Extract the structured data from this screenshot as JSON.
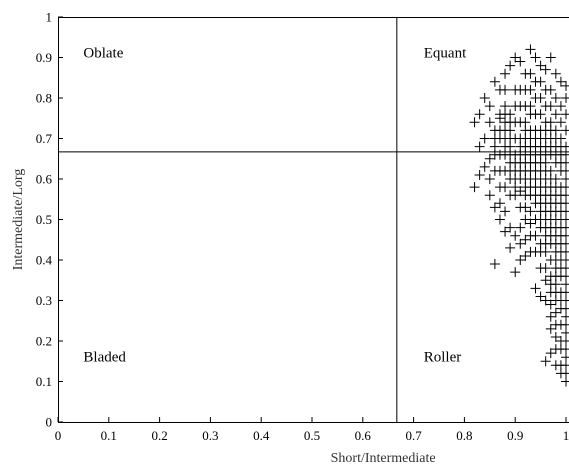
{
  "chart_data": {
    "type": "scatter",
    "xlabel": "Short/Intermediate",
    "ylabel": "Intermediate/Lorg",
    "xlim": [
      0,
      1
    ],
    "ylim": [
      0,
      1
    ],
    "xticks": [
      "0",
      "0.1",
      "0.2",
      "0.3",
      "0.4",
      "0.5",
      "0.6",
      "0.7",
      "0.8",
      "0.9",
      "1"
    ],
    "yticks": [
      "0",
      "0.1",
      "0.2",
      "0.3",
      "0.4",
      "0.5",
      "0.6",
      "0.7",
      "0.8",
      "0.9",
      "1"
    ],
    "divider_x": 0.667,
    "divider_y": 0.667,
    "regions": [
      {
        "label": "Oblate",
        "x": 0.05,
        "y": 0.9
      },
      {
        "label": "Equant",
        "x": 0.72,
        "y": 0.9
      },
      {
        "label": "Bladed",
        "x": 0.05,
        "y": 0.15
      },
      {
        "label": "Roller",
        "x": 0.72,
        "y": 0.15
      }
    ],
    "marker": "+",
    "color": "#000000",
    "points": [
      [
        0.82,
        0.58
      ],
      [
        0.83,
        0.61
      ],
      [
        0.84,
        0.63
      ],
      [
        0.85,
        0.65
      ],
      [
        0.86,
        0.68
      ],
      [
        0.86,
        0.72
      ],
      [
        0.87,
        0.75
      ],
      [
        0.88,
        0.78
      ],
      [
        0.87,
        0.82
      ],
      [
        0.86,
        0.84
      ],
      [
        0.88,
        0.86
      ],
      [
        0.89,
        0.88
      ],
      [
        0.9,
        0.9
      ],
      [
        0.91,
        0.89
      ],
      [
        0.93,
        0.92
      ],
      [
        0.94,
        0.9
      ],
      [
        0.95,
        0.88
      ],
      [
        0.96,
        0.87
      ],
      [
        0.97,
        0.9
      ],
      [
        0.98,
        0.86
      ],
      [
        0.99,
        0.84
      ],
      [
        1.0,
        0.83
      ],
      [
        0.85,
        0.56
      ],
      [
        0.86,
        0.53
      ],
      [
        0.87,
        0.5
      ],
      [
        0.88,
        0.47
      ],
      [
        0.86,
        0.39
      ],
      [
        0.89,
        0.43
      ],
      [
        0.9,
        0.37
      ],
      [
        0.91,
        0.4
      ],
      [
        0.92,
        0.45
      ],
      [
        0.93,
        0.42
      ],
      [
        0.94,
        0.33
      ],
      [
        0.95,
        0.31
      ],
      [
        0.96,
        0.35
      ],
      [
        0.97,
        0.23
      ],
      [
        0.98,
        0.21
      ],
      [
        0.96,
        0.15
      ],
      [
        0.97,
        0.17
      ],
      [
        0.98,
        0.14
      ],
      [
        0.99,
        0.12
      ],
      [
        1.0,
        0.1
      ],
      [
        0.99,
        0.18
      ],
      [
        1.0,
        0.2
      ],
      [
        0.99,
        0.24
      ],
      [
        0.98,
        0.27
      ],
      [
        0.99,
        0.3
      ],
      [
        1.0,
        0.32
      ],
      [
        0.97,
        0.29
      ],
      [
        0.98,
        0.34
      ],
      [
        0.89,
        0.6
      ],
      [
        0.9,
        0.62
      ],
      [
        0.9,
        0.66
      ],
      [
        0.91,
        0.7
      ],
      [
        0.92,
        0.74
      ],
      [
        0.91,
        0.78
      ],
      [
        0.92,
        0.82
      ],
      [
        0.93,
        0.86
      ],
      [
        0.94,
        0.84
      ],
      [
        0.95,
        0.8
      ],
      [
        0.93,
        0.76
      ],
      [
        0.94,
        0.72
      ],
      [
        0.95,
        0.68
      ],
      [
        0.96,
        0.64
      ],
      [
        0.97,
        0.6
      ],
      [
        0.98,
        0.56
      ],
      [
        0.99,
        0.52
      ],
      [
        1.0,
        0.48
      ],
      [
        0.99,
        0.44
      ],
      [
        0.98,
        0.4
      ],
      [
        0.97,
        0.44
      ],
      [
        0.96,
        0.48
      ],
      [
        0.95,
        0.52
      ],
      [
        0.94,
        0.56
      ],
      [
        0.93,
        0.6
      ],
      [
        0.92,
        0.64
      ],
      [
        0.91,
        0.57
      ],
      [
        0.92,
        0.53
      ],
      [
        0.93,
        0.49
      ],
      [
        0.94,
        0.46
      ],
      [
        0.95,
        0.42
      ],
      [
        0.96,
        0.38
      ],
      [
        0.97,
        0.36
      ],
      [
        0.98,
        0.32
      ],
      [
        0.99,
        0.36
      ],
      [
        1.0,
        0.4
      ],
      [
        1.0,
        0.44
      ],
      [
        1.0,
        0.52
      ],
      [
        1.0,
        0.56
      ],
      [
        1.0,
        0.6
      ],
      [
        1.0,
        0.64
      ],
      [
        1.0,
        0.68
      ],
      [
        1.0,
        0.72
      ],
      [
        1.0,
        0.76
      ],
      [
        1.0,
        0.8
      ],
      [
        0.99,
        0.78
      ],
      [
        0.99,
        0.74
      ],
      [
        0.99,
        0.7
      ],
      [
        0.99,
        0.66
      ],
      [
        0.99,
        0.62
      ],
      [
        0.99,
        0.58
      ],
      [
        0.98,
        0.6
      ],
      [
        0.98,
        0.64
      ],
      [
        0.98,
        0.68
      ],
      [
        0.98,
        0.72
      ],
      [
        0.98,
        0.76
      ],
      [
        0.98,
        0.8
      ],
      [
        0.97,
        0.82
      ],
      [
        0.97,
        0.78
      ],
      [
        0.97,
        0.74
      ],
      [
        0.97,
        0.7
      ],
      [
        0.97,
        0.66
      ],
      [
        0.97,
        0.62
      ],
      [
        0.97,
        0.56
      ],
      [
        0.97,
        0.52
      ],
      [
        0.97,
        0.48
      ],
      [
        0.96,
        0.5
      ],
      [
        0.96,
        0.54
      ],
      [
        0.96,
        0.58
      ],
      [
        0.96,
        0.62
      ],
      [
        0.96,
        0.66
      ],
      [
        0.96,
        0.7
      ],
      [
        0.96,
        0.74
      ],
      [
        0.96,
        0.78
      ],
      [
        0.96,
        0.82
      ],
      [
        0.95,
        0.84
      ],
      [
        0.95,
        0.76
      ],
      [
        0.95,
        0.72
      ],
      [
        0.95,
        0.64
      ],
      [
        0.95,
        0.6
      ],
      [
        0.95,
        0.56
      ],
      [
        0.95,
        0.48
      ],
      [
        0.95,
        0.44
      ],
      [
        0.94,
        0.5
      ],
      [
        0.94,
        0.54
      ],
      [
        0.94,
        0.6
      ],
      [
        0.94,
        0.64
      ],
      [
        0.94,
        0.68
      ],
      [
        0.94,
        0.76
      ],
      [
        0.94,
        0.8
      ],
      [
        0.93,
        0.82
      ],
      [
        0.93,
        0.78
      ],
      [
        0.93,
        0.72
      ],
      [
        0.93,
        0.68
      ],
      [
        0.93,
        0.64
      ],
      [
        0.93,
        0.56
      ],
      [
        0.93,
        0.52
      ],
      [
        0.92,
        0.58
      ],
      [
        0.92,
        0.62
      ],
      [
        0.92,
        0.68
      ],
      [
        0.92,
        0.72
      ],
      [
        0.92,
        0.78
      ],
      [
        0.92,
        0.86
      ],
      [
        0.91,
        0.82
      ],
      [
        0.91,
        0.74
      ],
      [
        0.91,
        0.66
      ],
      [
        0.91,
        0.62
      ],
      [
        0.91,
        0.53
      ],
      [
        0.9,
        0.56
      ],
      [
        0.9,
        0.58
      ],
      [
        0.9,
        0.7
      ],
      [
        0.9,
        0.74
      ],
      [
        0.9,
        0.78
      ],
      [
        0.9,
        0.82
      ],
      [
        0.89,
        0.76
      ],
      [
        0.89,
        0.72
      ],
      [
        0.89,
        0.68
      ],
      [
        0.89,
        0.64
      ],
      [
        0.89,
        0.56
      ],
      [
        0.88,
        0.58
      ],
      [
        0.88,
        0.62
      ],
      [
        0.88,
        0.66
      ],
      [
        0.88,
        0.7
      ],
      [
        0.88,
        0.74
      ],
      [
        0.88,
        0.82
      ],
      [
        0.87,
        0.66
      ],
      [
        0.87,
        0.7
      ],
      [
        0.87,
        0.62
      ],
      [
        0.87,
        0.58
      ],
      [
        0.86,
        0.62
      ],
      [
        0.99,
        0.46
      ],
      [
        0.99,
        0.5
      ],
      [
        0.99,
        0.54
      ],
      [
        0.98,
        0.44
      ],
      [
        0.98,
        0.48
      ],
      [
        0.98,
        0.52
      ],
      [
        0.97,
        0.4
      ],
      [
        0.96,
        0.42
      ],
      [
        0.96,
        0.44
      ],
      [
        0.95,
        0.38
      ],
      [
        0.99,
        0.28
      ],
      [
        0.99,
        0.32
      ],
      [
        0.99,
        0.38
      ],
      [
        0.99,
        0.4
      ],
      [
        0.98,
        0.36
      ],
      [
        0.98,
        0.38
      ],
      [
        0.98,
        0.24
      ],
      [
        0.97,
        0.26
      ],
      [
        0.97,
        0.32
      ],
      [
        1.0,
        0.28
      ],
      [
        1.0,
        0.36
      ],
      [
        1.0,
        0.24
      ],
      [
        1.0,
        0.16
      ],
      [
        0.99,
        0.2
      ],
      [
        0.98,
        0.18
      ],
      [
        1.0,
        0.12
      ],
      [
        0.99,
        0.14
      ],
      [
        0.98,
        0.3
      ],
      [
        0.97,
        0.34
      ],
      [
        0.96,
        0.3
      ],
      [
        0.94,
        0.42
      ],
      [
        0.93,
        0.46
      ],
      [
        0.92,
        0.5
      ],
      [
        0.91,
        0.48
      ],
      [
        0.9,
        0.46
      ],
      [
        0.92,
        0.41
      ],
      [
        0.91,
        0.44
      ],
      [
        0.89,
        0.48
      ],
      [
        0.88,
        0.52
      ],
      [
        0.87,
        0.54
      ],
      [
        0.95,
        0.66
      ],
      [
        0.96,
        0.68
      ],
      [
        0.97,
        0.68
      ],
      [
        0.98,
        0.66
      ],
      [
        0.99,
        0.64
      ],
      [
        1.0,
        0.66
      ],
      [
        0.99,
        0.68
      ],
      [
        0.98,
        0.7
      ],
      [
        0.97,
        0.72
      ],
      [
        0.96,
        0.72
      ],
      [
        0.95,
        0.7
      ],
      [
        0.94,
        0.7
      ],
      [
        0.93,
        0.7
      ],
      [
        0.92,
        0.7
      ],
      [
        0.91,
        0.68
      ],
      [
        0.95,
        0.62
      ],
      [
        0.96,
        0.6
      ],
      [
        0.97,
        0.58
      ],
      [
        0.98,
        0.58
      ],
      [
        0.99,
        0.56
      ],
      [
        1.0,
        0.58
      ],
      [
        1.0,
        0.62
      ],
      [
        1.0,
        0.54
      ],
      [
        1.0,
        0.5
      ],
      [
        1.0,
        0.46
      ],
      [
        1.0,
        0.42
      ],
      [
        1.0,
        0.38
      ],
      [
        1.0,
        0.34
      ],
      [
        1.0,
        0.3
      ],
      [
        1.0,
        0.26
      ],
      [
        1.0,
        0.22
      ],
      [
        1.0,
        0.18
      ],
      [
        1.0,
        0.14
      ],
      [
        0.99,
        0.42
      ],
      [
        0.99,
        0.48
      ],
      [
        0.98,
        0.42
      ],
      [
        0.98,
        0.46
      ],
      [
        0.98,
        0.5
      ],
      [
        0.98,
        0.54
      ],
      [
        0.97,
        0.46
      ],
      [
        0.97,
        0.5
      ],
      [
        0.97,
        0.54
      ],
      [
        0.96,
        0.46
      ],
      [
        0.96,
        0.52
      ],
      [
        0.96,
        0.56
      ],
      [
        0.95,
        0.5
      ],
      [
        0.95,
        0.54
      ],
      [
        0.95,
        0.58
      ],
      [
        0.94,
        0.58
      ],
      [
        0.94,
        0.62
      ],
      [
        0.93,
        0.58
      ],
      [
        0.93,
        0.62
      ],
      [
        0.93,
        0.66
      ],
      [
        0.94,
        0.66
      ],
      [
        0.92,
        0.66
      ],
      [
        0.92,
        0.6
      ],
      [
        0.92,
        0.56
      ],
      [
        0.91,
        0.6
      ],
      [
        0.91,
        0.64
      ],
      [
        0.9,
        0.64
      ],
      [
        0.9,
        0.6
      ],
      [
        0.89,
        0.62
      ],
      [
        0.89,
        0.66
      ],
      [
        0.89,
        0.7
      ],
      [
        0.89,
        0.74
      ],
      [
        0.88,
        0.68
      ],
      [
        0.88,
        0.72
      ],
      [
        0.88,
        0.76
      ],
      [
        0.87,
        0.72
      ],
      [
        0.87,
        0.76
      ],
      [
        0.86,
        0.66
      ],
      [
        0.86,
        0.7
      ],
      [
        0.85,
        0.74
      ],
      [
        0.85,
        0.78
      ],
      [
        0.84,
        0.8
      ],
      [
        0.83,
        0.76
      ],
      [
        0.82,
        0.74
      ],
      [
        0.84,
        0.7
      ],
      [
        0.83,
        0.68
      ],
      [
        0.85,
        0.6
      ]
    ]
  }
}
